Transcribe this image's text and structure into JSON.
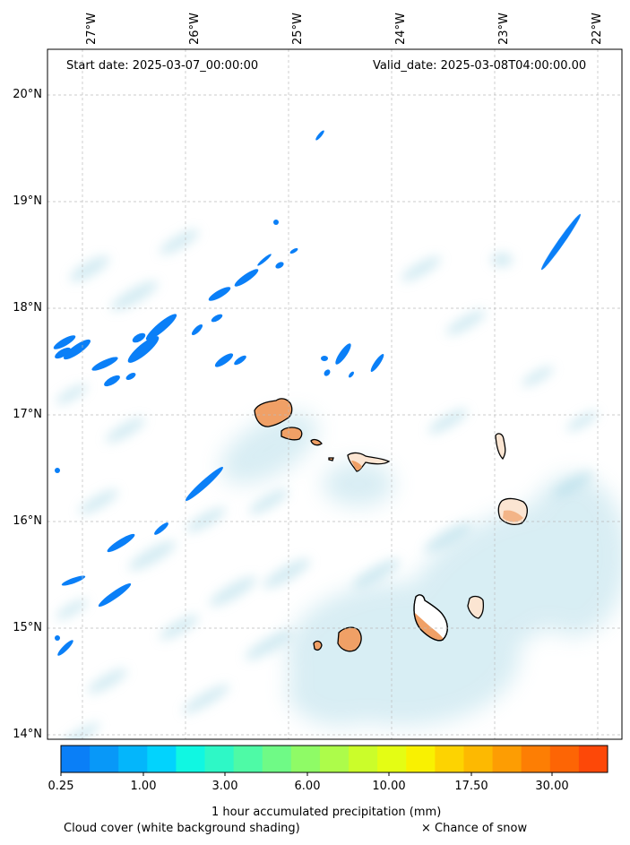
{
  "map": {
    "start_date": "Start date: 2025-03-07_00:00:00",
    "valid_date": "Valid_date: 2025-03-08T04:00:00.00",
    "lon_labels": [
      "27°W",
      "26°W",
      "25°W",
      "24°W",
      "23°W",
      "22°W"
    ],
    "lat_labels": [
      "20°N",
      "19°N",
      "18°N",
      "17°N",
      "16°N",
      "15°N",
      "14°N"
    ]
  },
  "colorbar": {
    "title": "1 hour accumulated precipitation (mm)",
    "ticks": [
      "0.25",
      "1.00",
      "3.00",
      "6.00",
      "10.00",
      "17.50",
      "30.00"
    ],
    "colors": [
      "#0a7ff7",
      "#0898f8",
      "#04b6fb",
      "#02d3fd",
      "#10f7e2",
      "#2ef8c6",
      "#4efaa6",
      "#6ffa86",
      "#8ffb66",
      "#adfc4a",
      "#cbfd2a",
      "#e4fd14",
      "#f9f101",
      "#fdd301",
      "#fdb901",
      "#fd9d03",
      "#fd7e04",
      "#fd6505",
      "#fd4808"
    ]
  },
  "legend": {
    "cloud_cover": "Cloud cover (white background shading)",
    "snow": "× Chance of snow"
  },
  "colors": {
    "cloud": "#a9d8e6",
    "precip_light": "#0a7ff7",
    "land_heat": "#f0a066",
    "land_pale": "#fbe5d2"
  }
}
